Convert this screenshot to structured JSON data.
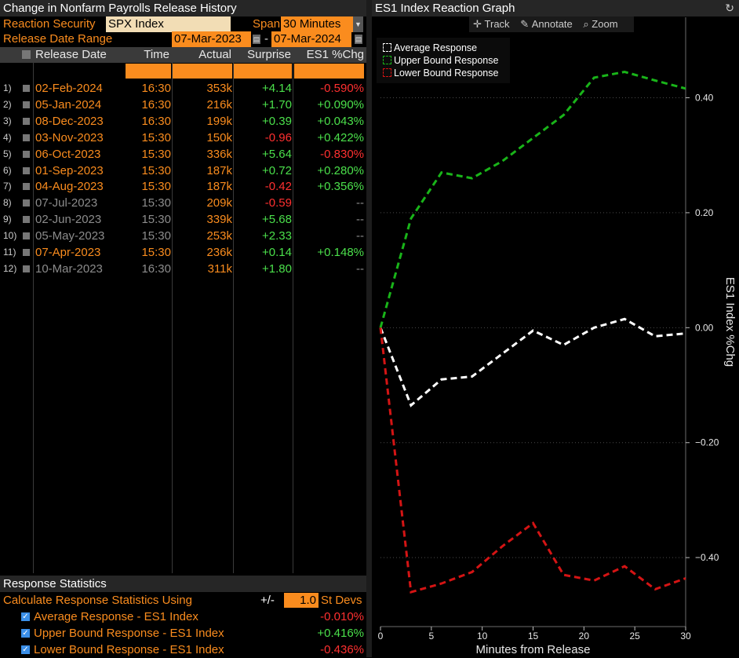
{
  "left_title": "Change in Nonfarm Payrolls Release History",
  "controls": {
    "reaction_security_label": "Reaction Security",
    "reaction_security_value": "SPX Index",
    "span_label": "Span",
    "span_value": "30 Minutes",
    "date_range_label": "Release Date Range",
    "date_from": "07-Mar-2023",
    "date_sep": "-",
    "date_to": "07-Mar-2024"
  },
  "table": {
    "headers": [
      "Release Date",
      "Time",
      "Actual",
      "Surprise",
      "ES1 %Chg"
    ],
    "rows": [
      {
        "n": "1)",
        "date": "02-Feb-2024",
        "time": "16:30",
        "actual": "353k",
        "surprise": "+4.14",
        "chg": "-0.590%",
        "active": true
      },
      {
        "n": "2)",
        "date": "05-Jan-2024",
        "time": "16:30",
        "actual": "216k",
        "surprise": "+1.70",
        "chg": "+0.090%",
        "active": true
      },
      {
        "n": "3)",
        "date": "08-Dec-2023",
        "time": "16:30",
        "actual": "199k",
        "surprise": "+0.39",
        "chg": "+0.043%",
        "active": true
      },
      {
        "n": "4)",
        "date": "03-Nov-2023",
        "time": "15:30",
        "actual": "150k",
        "surprise": "-0.96",
        "chg": "+0.422%",
        "active": true
      },
      {
        "n": "5)",
        "date": "06-Oct-2023",
        "time": "15:30",
        "actual": "336k",
        "surprise": "+5.64",
        "chg": "-0.830%",
        "active": true
      },
      {
        "n": "6)",
        "date": "01-Sep-2023",
        "time": "15:30",
        "actual": "187k",
        "surprise": "+0.72",
        "chg": "+0.280%",
        "active": true
      },
      {
        "n": "7)",
        "date": "04-Aug-2023",
        "time": "15:30",
        "actual": "187k",
        "surprise": "-0.42",
        "chg": "+0.356%",
        "active": true
      },
      {
        "n": "8)",
        "date": "07-Jul-2023",
        "time": "15:30",
        "actual": "209k",
        "surprise": "-0.59",
        "chg": "--",
        "active": false
      },
      {
        "n": "9)",
        "date": "02-Jun-2023",
        "time": "15:30",
        "actual": "339k",
        "surprise": "+5.68",
        "chg": "--",
        "active": false
      },
      {
        "n": "10)",
        "date": "05-May-2023",
        "time": "15:30",
        "actual": "253k",
        "surprise": "+2.33",
        "chg": "--",
        "active": false
      },
      {
        "n": "11)",
        "date": "07-Apr-2023",
        "time": "15:30",
        "actual": "236k",
        "surprise": "+0.14",
        "chg": "+0.148%",
        "active": true
      },
      {
        "n": "12)",
        "date": "10-Mar-2023",
        "time": "16:30",
        "actual": "311k",
        "surprise": "+1.80",
        "chg": "--",
        "active": false
      }
    ]
  },
  "stats": {
    "title": "Response Statistics",
    "calc_label": "Calculate Response Statistics Using",
    "pm": "+/-",
    "stdev_value": "1.0",
    "stdev_label": "St Devs",
    "items": [
      {
        "label": "Average Response - ES1 Index",
        "value": "-0.010%",
        "color": "#ff3030"
      },
      {
        "label": "Upper Bound Response - ES1 Index",
        "value": "+0.416%",
        "color": "#4be04b"
      },
      {
        "label": "Lower Bound Response - ES1 Index",
        "value": "-0.436%",
        "color": "#ff3030"
      }
    ]
  },
  "graph": {
    "title": "ES1 Index Reaction Graph",
    "toolbar": {
      "track": "Track",
      "annotate": "Annotate",
      "zoom": "Zoom"
    },
    "legend": [
      "Average Response",
      "Upper Bound Response",
      "Lower Bound Response"
    ]
  },
  "chart_data": {
    "type": "line",
    "xlabel": "Minutes from Release",
    "ylabel": "ES1 Index %Chg",
    "xlim": [
      0,
      30
    ],
    "ylim": [
      -0.52,
      0.54
    ],
    "xticks": [
      0,
      5,
      10,
      15,
      20,
      25,
      30
    ],
    "yticks": [
      0.4,
      0.2,
      0.0,
      -0.2,
      -0.4
    ],
    "ytick_labels": [
      "0.40",
      "0.20",
      "0.00",
      "-0.20",
      "-0.40"
    ],
    "grid": true,
    "legend_position": "top-left",
    "series": [
      {
        "name": "Average Response",
        "color": "#ffffff",
        "x": [
          0,
          3,
          6,
          9,
          12,
          15,
          18,
          21,
          24,
          27,
          30
        ],
        "y": [
          0.0,
          -0.135,
          -0.09,
          -0.085,
          -0.045,
          -0.005,
          -0.03,
          0.0,
          0.015,
          -0.015,
          -0.01
        ]
      },
      {
        "name": "Upper Bound Response",
        "color": "#19b419",
        "x": [
          0,
          3,
          6,
          9,
          12,
          15,
          18,
          21,
          24,
          27,
          30
        ],
        "y": [
          0.0,
          0.19,
          0.27,
          0.26,
          0.29,
          0.33,
          0.37,
          0.435,
          0.445,
          0.43,
          0.416
        ]
      },
      {
        "name": "Lower Bound Response",
        "color": "#d41414",
        "x": [
          0,
          3,
          6,
          9,
          12,
          15,
          18,
          21,
          24,
          27,
          30
        ],
        "y": [
          0.0,
          -0.46,
          -0.445,
          -0.425,
          -0.38,
          -0.34,
          -0.43,
          -0.44,
          -0.415,
          -0.455,
          -0.436
        ]
      }
    ]
  }
}
